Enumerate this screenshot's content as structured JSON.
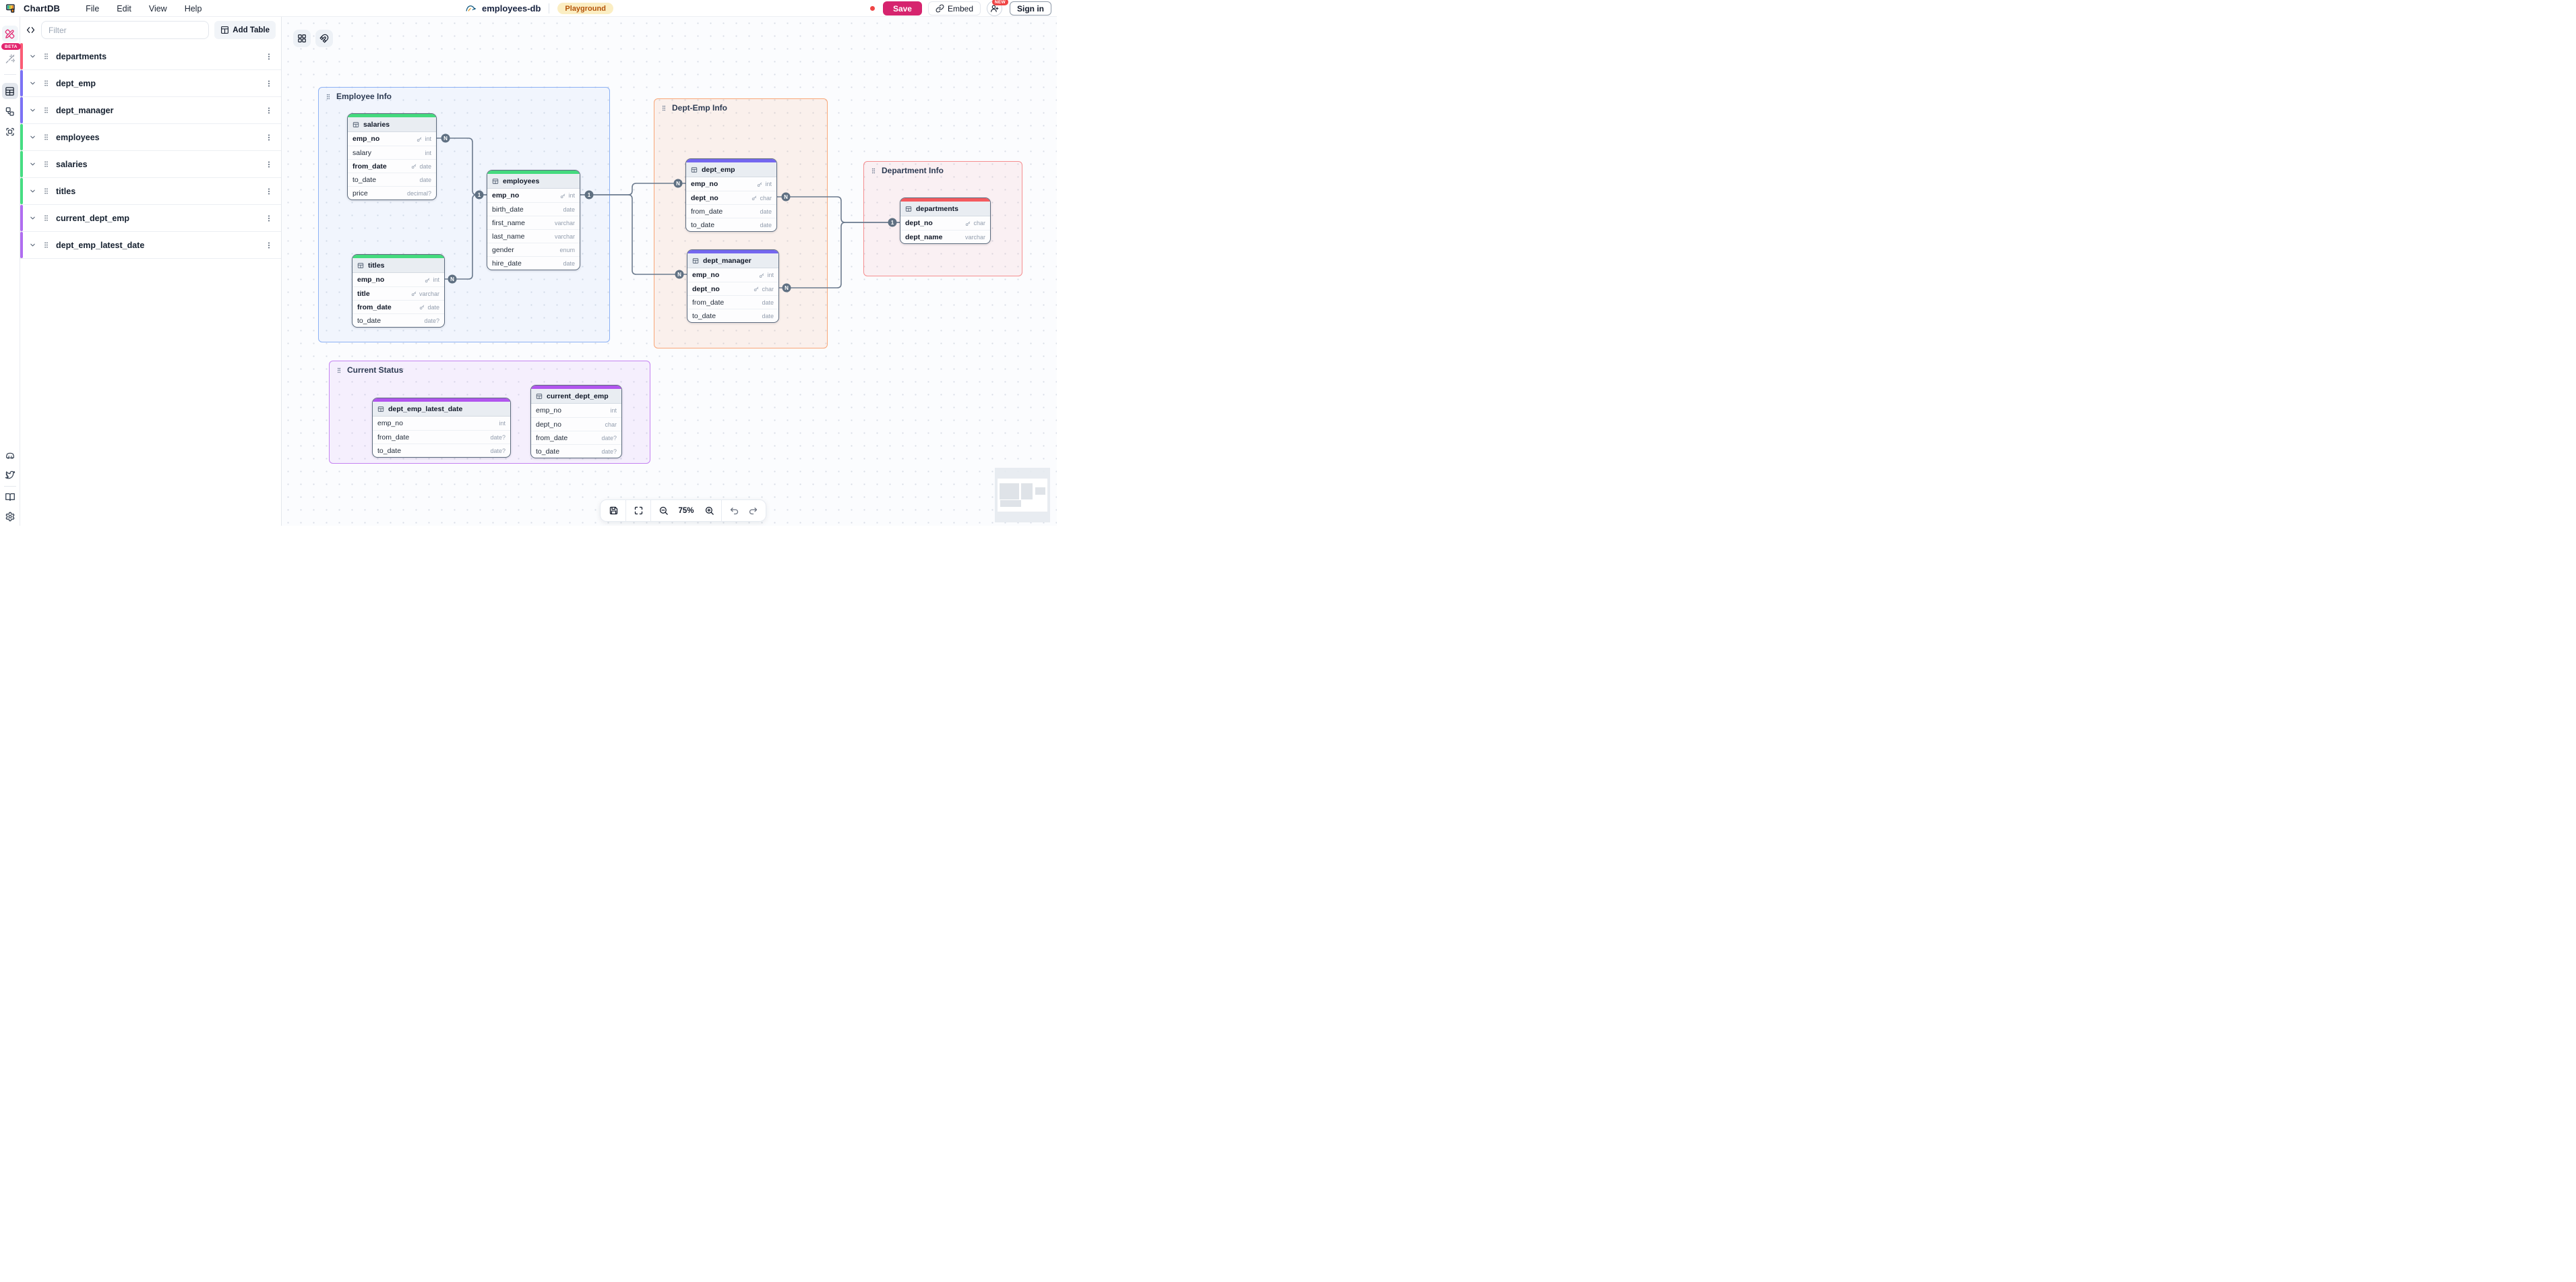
{
  "top_bar": {
    "app_name": "ChartDB",
    "menus": [
      "File",
      "Edit",
      "View",
      "Help"
    ],
    "database": {
      "icon": "mysql-icon",
      "name": "employees-db"
    },
    "environment_badge": "Playground",
    "unsaved_dot_color": "#ef4444",
    "save_label": "Save",
    "save_color": "#d6246e",
    "embed_label": "Embed",
    "new_badge": "NEW",
    "sign_in_label": "Sign in"
  },
  "rail": {
    "beta_label": "BETA",
    "top_icons": [
      "pencil-ruler-icon",
      "magic-wand-icon",
      "tables-view-icon",
      "relationships-icon",
      "areas-icon"
    ],
    "bottom_icons": [
      "discord-icon",
      "twitter-icon",
      "docs-icon",
      "settings-icon"
    ]
  },
  "panel": {
    "code_toggle_icon": "code-icon",
    "filter_placeholder": "Filter",
    "add_table_label": "Add Table",
    "tables": [
      {
        "name": "departments",
        "color": "#fb5c75"
      },
      {
        "name": "dept_emp",
        "color": "#7b72f5"
      },
      {
        "name": "dept_manager",
        "color": "#7b72f5"
      },
      {
        "name": "employees",
        "color": "#46de82"
      },
      {
        "name": "salaries",
        "color": "#46de82"
      },
      {
        "name": "titles",
        "color": "#46de82"
      },
      {
        "name": "current_dept_emp",
        "color": "#b06df0"
      },
      {
        "name": "dept_emp_latest_date",
        "color": "#b06df0"
      }
    ]
  },
  "canvas": {
    "control_icons": [
      "layout-grid-icon",
      "magnet-icon"
    ],
    "areas": [
      {
        "id": "employee_info",
        "label": "Employee Info",
        "border": "#8cb1f5",
        "fill": "rgba(140,177,245,0.09)"
      },
      {
        "id": "dept_emp_info",
        "label": "Dept-Emp Info",
        "border": "#f9a677",
        "fill": "rgba(249,166,119,0.13)"
      },
      {
        "id": "department_info",
        "label": "Department Info",
        "border": "#f58e90",
        "fill": "rgba(245,142,144,0.10)"
      },
      {
        "id": "current_status",
        "label": "Current Status",
        "border": "#c583f2",
        "fill": "rgba(197,131,242,0.10)"
      }
    ],
    "tables": [
      {
        "id": "salaries",
        "name": "salaries",
        "accent": "#44da7e",
        "fields": [
          {
            "name": "emp_no",
            "type": "int",
            "key": true
          },
          {
            "name": "salary",
            "type": "int"
          },
          {
            "name": "from_date",
            "type": "date",
            "key": true
          },
          {
            "name": "to_date",
            "type": "date"
          },
          {
            "name": "price",
            "type": "decimal?"
          }
        ]
      },
      {
        "id": "titles",
        "name": "titles",
        "accent": "#44da7e",
        "fields": [
          {
            "name": "emp_no",
            "type": "int",
            "key": true
          },
          {
            "name": "title",
            "type": "varchar",
            "key": true
          },
          {
            "name": "from_date",
            "type": "date",
            "key": true
          },
          {
            "name": "to_date",
            "type": "date?"
          }
        ]
      },
      {
        "id": "employees",
        "name": "employees",
        "accent": "#44da7e",
        "fields": [
          {
            "name": "emp_no",
            "type": "int",
            "key": true
          },
          {
            "name": "birth_date",
            "type": "date"
          },
          {
            "name": "first_name",
            "type": "varchar"
          },
          {
            "name": "last_name",
            "type": "varchar"
          },
          {
            "name": "gender",
            "type": "enum"
          },
          {
            "name": "hire_date",
            "type": "date"
          }
        ]
      },
      {
        "id": "dept_emp",
        "name": "dept_emp",
        "accent": "#7467ef",
        "fields": [
          {
            "name": "emp_no",
            "type": "int",
            "key": true
          },
          {
            "name": "dept_no",
            "type": "char",
            "key": true
          },
          {
            "name": "from_date",
            "type": "date"
          },
          {
            "name": "to_date",
            "type": "date"
          }
        ]
      },
      {
        "id": "dept_manager",
        "name": "dept_manager",
        "accent": "#7467ef",
        "fields": [
          {
            "name": "emp_no",
            "type": "int",
            "key": true
          },
          {
            "name": "dept_no",
            "type": "char",
            "key": true
          },
          {
            "name": "from_date",
            "type": "date"
          },
          {
            "name": "to_date",
            "type": "date"
          }
        ]
      },
      {
        "id": "departments",
        "name": "departments",
        "accent": "#f45a5e",
        "fields": [
          {
            "name": "dept_no",
            "type": "char",
            "key": true
          },
          {
            "name": "dept_name",
            "type": "varchar",
            "bold": true
          }
        ]
      },
      {
        "id": "dept_emp_latest_date",
        "name": "dept_emp_latest_date",
        "accent": "#b155ee",
        "fields": [
          {
            "name": "emp_no",
            "type": "int"
          },
          {
            "name": "from_date",
            "type": "date?"
          },
          {
            "name": "to_date",
            "type": "date?"
          }
        ]
      },
      {
        "id": "current_dept_emp",
        "name": "current_dept_emp",
        "accent": "#b155ee",
        "fields": [
          {
            "name": "emp_no",
            "type": "int"
          },
          {
            "name": "dept_no",
            "type": "char"
          },
          {
            "name": "from_date",
            "type": "date?"
          },
          {
            "name": "to_date",
            "type": "date?"
          }
        ]
      }
    ],
    "relationship_markers": [
      {
        "label": "N"
      },
      {
        "label": "N"
      },
      {
        "label": "1"
      },
      {
        "label": "1"
      },
      {
        "label": "N"
      },
      {
        "label": "N"
      },
      {
        "label": "N"
      },
      {
        "label": "N"
      },
      {
        "label": "1"
      }
    ]
  },
  "toolbar": {
    "icons": [
      "save-icon",
      "fit-view-icon",
      "zoom-out-icon",
      "zoom-in-icon",
      "undo-icon",
      "redo-icon"
    ],
    "zoom_level": "75%"
  },
  "minimap": {
    "visible": true
  }
}
